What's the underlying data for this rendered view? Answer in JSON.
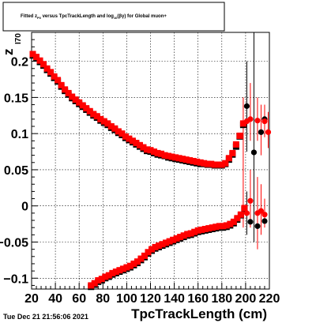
{
  "chart_data": {
    "type": "scatter",
    "title": "Fitted  z_{P0}  versus TpcTrackLength and log_{10}(βγ) for Global muon+",
    "title_parts": {
      "pre": "Fitted  z",
      "sub1": "P0",
      "mid": "  versus TpcTrackLength and log",
      "sub2": "10",
      "post": "(βγ) for Global muon+"
    },
    "ylabel_main": "z",
    "ylabel_sub": "I70",
    "xlabel": "TpcTrackLength (cm)",
    "timestamp": "Tue Dec 21 21:56:06 2021",
    "xlim": [
      20,
      220
    ],
    "ylim": [
      -0.115,
      0.24
    ],
    "xticks": [
      20,
      40,
      60,
      80,
      100,
      120,
      140,
      160,
      180,
      200,
      220
    ],
    "xtick_labels": [
      "20",
      "40",
      "60",
      "80",
      "100",
      "120",
      "140",
      "160",
      "180",
      "200",
      "220"
    ],
    "yticks": [
      -0.1,
      -0.05,
      0,
      0.05,
      0.1,
      0.15,
      0.2
    ],
    "ytick_labels": [
      "−0.1",
      "−0.05",
      "0",
      "0.05",
      "0.1",
      "0.15",
      "0.2"
    ],
    "colors": {
      "series_black": "#000000",
      "series_red": "#ff0000",
      "axis": "#000000",
      "grid": "#000000"
    },
    "series": [
      {
        "color": "#000000",
        "points": [
          [
            21,
            0.208
          ],
          [
            24,
            0.204
          ],
          [
            27,
            0.199
          ],
          [
            30,
            0.194
          ],
          [
            33,
            0.188
          ],
          [
            36,
            0.183
          ],
          [
            39,
            0.177
          ],
          [
            42,
            0.172
          ],
          [
            45,
            0.165
          ],
          [
            48,
            0.159
          ],
          [
            51,
            0.154
          ],
          [
            54,
            0.149
          ],
          [
            57,
            0.145
          ],
          [
            60,
            0.141
          ],
          [
            63,
            0.137
          ],
          [
            66,
            0.133
          ],
          [
            69,
            0.129
          ],
          [
            72,
            0.125
          ],
          [
            75,
            0.122
          ],
          [
            78,
            0.118
          ],
          [
            81,
            0.115
          ],
          [
            84,
            0.112
          ],
          [
            87,
            0.108
          ],
          [
            90,
            0.105
          ],
          [
            93,
            0.101
          ],
          [
            96,
            0.098
          ],
          [
            99,
            0.094
          ],
          [
            102,
            0.091
          ],
          [
            105,
            0.088
          ],
          [
            108,
            0.085
          ],
          [
            111,
            0.082
          ],
          [
            114,
            0.079
          ],
          [
            117,
            0.076
          ],
          [
            120,
            0.075
          ],
          [
            123,
            0.073
          ],
          [
            126,
            0.071
          ],
          [
            129,
            0.07
          ],
          [
            132,
            0.069
          ],
          [
            135,
            0.067
          ],
          [
            138,
            0.066
          ],
          [
            141,
            0.065
          ],
          [
            144,
            0.064
          ],
          [
            147,
            0.063
          ],
          [
            150,
            0.062
          ],
          [
            153,
            0.061
          ],
          [
            156,
            0.06
          ],
          [
            159,
            0.059
          ],
          [
            162,
            0.058
          ],
          [
            165,
            0.058
          ],
          [
            168,
            0.057
          ],
          [
            171,
            0.057
          ],
          [
            174,
            0.056
          ],
          [
            177,
            0.056
          ],
          [
            180,
            0.056
          ],
          [
            183,
            0.058
          ],
          [
            186,
            0.064
          ],
          [
            189,
            0.071
          ],
          [
            192,
            0.082
          ],
          [
            195,
            0.096
          ],
          [
            198,
            0.112
          ],
          [
            201,
            0.138
          ],
          [
            207,
            0.074
          ],
          [
            213,
            0.102
          ],
          [
            216,
            0.12
          ],
          [
            70,
            -0.112
          ],
          [
            73,
            -0.109
          ],
          [
            76,
            -0.105
          ],
          [
            79,
            -0.103
          ],
          [
            82,
            -0.1
          ],
          [
            85,
            -0.098
          ],
          [
            88,
            -0.095
          ],
          [
            91,
            -0.093
          ],
          [
            94,
            -0.091
          ],
          [
            97,
            -0.089
          ],
          [
            100,
            -0.087
          ],
          [
            103,
            -0.085
          ],
          [
            106,
            -0.082
          ],
          [
            109,
            -0.079
          ],
          [
            112,
            -0.075
          ],
          [
            115,
            -0.071
          ],
          [
            118,
            -0.066
          ],
          [
            121,
            -0.062
          ],
          [
            124,
            -0.059
          ],
          [
            127,
            -0.057
          ],
          [
            130,
            -0.055
          ],
          [
            133,
            -0.053
          ],
          [
            136,
            -0.051
          ],
          [
            139,
            -0.049
          ],
          [
            142,
            -0.047
          ],
          [
            145,
            -0.045
          ],
          [
            148,
            -0.043
          ],
          [
            151,
            -0.041
          ],
          [
            154,
            -0.04
          ],
          [
            157,
            -0.038
          ],
          [
            160,
            -0.036
          ],
          [
            163,
            -0.035
          ],
          [
            166,
            -0.034
          ],
          [
            169,
            -0.033
          ],
          [
            172,
            -0.032
          ],
          [
            175,
            -0.031
          ],
          [
            178,
            -0.03
          ],
          [
            181,
            -0.03
          ],
          [
            184,
            -0.029
          ],
          [
            187,
            -0.027
          ],
          [
            190,
            -0.024
          ],
          [
            193,
            -0.019
          ],
          [
            196,
            -0.013
          ],
          [
            199,
            -0.005
          ],
          [
            204,
            -0.022
          ],
          [
            210,
            -0.028
          ],
          [
            216,
            -0.021
          ]
        ]
      },
      {
        "color": "#ff0000",
        "points": [
          [
            21,
            0.21
          ],
          [
            24,
            0.206
          ],
          [
            27,
            0.201
          ],
          [
            30,
            0.196
          ],
          [
            33,
            0.19
          ],
          [
            36,
            0.185
          ],
          [
            39,
            0.179
          ],
          [
            42,
            0.174
          ],
          [
            45,
            0.167
          ],
          [
            48,
            0.161
          ],
          [
            51,
            0.156
          ],
          [
            54,
            0.151
          ],
          [
            57,
            0.147
          ],
          [
            60,
            0.143
          ],
          [
            63,
            0.139
          ],
          [
            66,
            0.135
          ],
          [
            69,
            0.131
          ],
          [
            72,
            0.127
          ],
          [
            75,
            0.124
          ],
          [
            78,
            0.12
          ],
          [
            81,
            0.117
          ],
          [
            84,
            0.114
          ],
          [
            87,
            0.11
          ],
          [
            90,
            0.107
          ],
          [
            93,
            0.103
          ],
          [
            96,
            0.1
          ],
          [
            99,
            0.096
          ],
          [
            102,
            0.093
          ],
          [
            105,
            0.09
          ],
          [
            108,
            0.087
          ],
          [
            111,
            0.084
          ],
          [
            114,
            0.081
          ],
          [
            117,
            0.078
          ],
          [
            120,
            0.077
          ],
          [
            123,
            0.075
          ],
          [
            126,
            0.073
          ],
          [
            129,
            0.072
          ],
          [
            132,
            0.07
          ],
          [
            135,
            0.069
          ],
          [
            138,
            0.068
          ],
          [
            141,
            0.067
          ],
          [
            144,
            0.066
          ],
          [
            147,
            0.065
          ],
          [
            150,
            0.064
          ],
          [
            153,
            0.063
          ],
          [
            156,
            0.062
          ],
          [
            159,
            0.061
          ],
          [
            162,
            0.06
          ],
          [
            165,
            0.059
          ],
          [
            168,
            0.058
          ],
          [
            171,
            0.058
          ],
          [
            174,
            0.057
          ],
          [
            177,
            0.057
          ],
          [
            180,
            0.057
          ],
          [
            183,
            0.059
          ],
          [
            186,
            0.066
          ],
          [
            189,
            0.073
          ],
          [
            192,
            0.085
          ],
          [
            195,
            0.097
          ],
          [
            198,
            0.114
          ],
          [
            201,
            0.117
          ],
          [
            204,
            0.12
          ],
          [
            210,
            0.118
          ],
          [
            216,
            0.117
          ],
          [
            219,
            0.102
          ],
          [
            70,
            -0.11
          ],
          [
            73,
            -0.107
          ],
          [
            76,
            -0.103
          ],
          [
            79,
            -0.101
          ],
          [
            82,
            -0.098
          ],
          [
            85,
            -0.096
          ],
          [
            88,
            -0.093
          ],
          [
            91,
            -0.091
          ],
          [
            94,
            -0.089
          ],
          [
            97,
            -0.087
          ],
          [
            100,
            -0.085
          ],
          [
            103,
            -0.083
          ],
          [
            106,
            -0.08
          ],
          [
            109,
            -0.077
          ],
          [
            112,
            -0.073
          ],
          [
            115,
            -0.069
          ],
          [
            118,
            -0.064
          ],
          [
            121,
            -0.06
          ],
          [
            124,
            -0.057
          ],
          [
            127,
            -0.055
          ],
          [
            130,
            -0.053
          ],
          [
            133,
            -0.051
          ],
          [
            136,
            -0.049
          ],
          [
            139,
            -0.047
          ],
          [
            142,
            -0.045
          ],
          [
            145,
            -0.043
          ],
          [
            148,
            -0.041
          ],
          [
            151,
            -0.039
          ],
          [
            154,
            -0.038
          ],
          [
            157,
            -0.036
          ],
          [
            160,
            -0.034
          ],
          [
            163,
            -0.033
          ],
          [
            166,
            -0.032
          ],
          [
            169,
            -0.031
          ],
          [
            172,
            -0.03
          ],
          [
            175,
            -0.029
          ],
          [
            178,
            -0.028
          ],
          [
            181,
            -0.028
          ],
          [
            184,
            -0.027
          ],
          [
            187,
            -0.025
          ],
          [
            190,
            -0.022
          ],
          [
            193,
            -0.017
          ],
          [
            196,
            -0.012
          ],
          [
            199,
            -0.003
          ],
          [
            201,
            -0.01
          ],
          [
            204,
            0.007
          ],
          [
            210,
            -0.01
          ],
          [
            213,
            -0.007
          ],
          [
            216,
            -0.012
          ]
        ]
      }
    ],
    "error_bars": [
      {
        "x": 198,
        "lo": -0.03,
        "hi": 0.15,
        "color": "#ff0000"
      },
      {
        "x": 201,
        "lo": 0.075,
        "hi": 0.2,
        "color": "#000000"
      },
      {
        "x": 201,
        "lo": -0.04,
        "hi": 0.02,
        "color": "#000000"
      },
      {
        "x": 204,
        "lo": 0.09,
        "hi": 0.17,
        "color": "#ff0000"
      },
      {
        "x": 204,
        "lo": -0.03,
        "hi": 0.05,
        "color": "#ff0000"
      },
      {
        "x": 207,
        "lo": -0.05,
        "hi": 0.24,
        "color": "#000000"
      },
      {
        "x": 210,
        "lo": 0.09,
        "hi": 0.15,
        "color": "#ff0000"
      },
      {
        "x": 210,
        "lo": -0.06,
        "hi": 0.04,
        "color": "#ff0000"
      },
      {
        "x": 213,
        "lo": 0.07,
        "hi": 0.14,
        "color": "#ff0000"
      },
      {
        "x": 213,
        "lo": -0.04,
        "hi": 0.03,
        "color": "#ff0000"
      },
      {
        "x": 216,
        "lo": 0.095,
        "hi": 0.14,
        "color": "#ff0000"
      },
      {
        "x": 216,
        "lo": -0.03,
        "hi": 0.01,
        "color": "#ff0000"
      },
      {
        "x": 219,
        "lo": 0.08,
        "hi": 0.13,
        "color": "#ff0000"
      }
    ]
  }
}
